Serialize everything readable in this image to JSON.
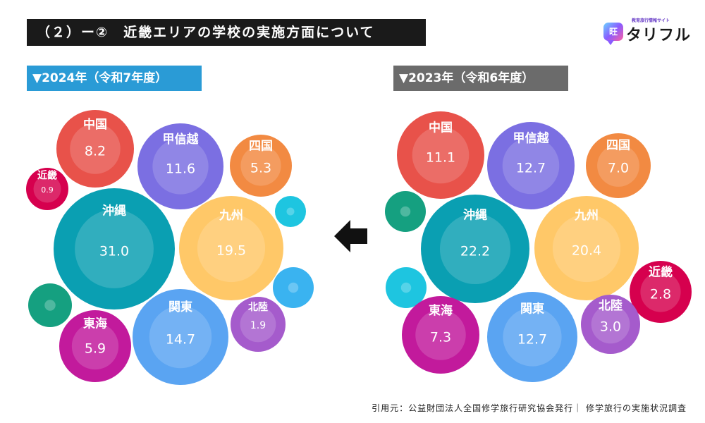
{
  "header": {
    "title": "（２）ー②　近畿エリアの学校の実施方面について",
    "arrow_icon": "left-arrow-icon"
  },
  "logo": {
    "tagline": "教育旅行情報サイト",
    "icon_text": "旺",
    "name": "タリフル"
  },
  "colors": {
    "近畿": "#d6004e",
    "中国": "#e8524a",
    "甲信越": "#7b6fe2",
    "四国": "#f28a42",
    "沖縄": "#0a9fb2",
    "九州": "#ffc868",
    "東海": "#c21a9c",
    "関東": "#5aa4f2",
    "北陸": "#a55bcc",
    "empty_cyan": "#1ec5e0",
    "empty_lightblue": "#3ab3f0",
    "empty_green": "#15a080",
    "year_left_bg": "#2a9bd6",
    "year_right_bg": "#6b6b6b"
  },
  "chart_data": [
    {
      "type": "bubble",
      "title": "▼2024年（令和7年度）",
      "unit": "%",
      "series": [
        {
          "name": "近畿",
          "value": "0.9"
        },
        {
          "name": "中国",
          "value": "8.2"
        },
        {
          "name": "甲信越",
          "value": "11.6"
        },
        {
          "name": "四国",
          "value": "5.3"
        },
        {
          "name": "沖縄",
          "value": "31.0"
        },
        {
          "name": "九州",
          "value": "19.5"
        },
        {
          "name": "東海",
          "value": "5.9"
        },
        {
          "name": "関東",
          "value": "14.7"
        },
        {
          "name": "北陸",
          "value": "1.9"
        }
      ]
    },
    {
      "type": "bubble",
      "title": "▼2023年（令和6年度）",
      "unit": "%",
      "series": [
        {
          "name": "中国",
          "value": "11.1"
        },
        {
          "name": "甲信越",
          "value": "12.7"
        },
        {
          "name": "四国",
          "value": "7.0"
        },
        {
          "name": "沖縄",
          "value": "22.2"
        },
        {
          "name": "九州",
          "value": "20.4"
        },
        {
          "name": "近畿",
          "value": "2.8"
        },
        {
          "name": "東海",
          "value": "7.3"
        },
        {
          "name": "関東",
          "value": "12.7"
        },
        {
          "name": "北陸",
          "value": "3.0"
        }
      ]
    }
  ],
  "footer": {
    "source": "引用元：公益財団法人全国修学旅行研究協会発行｜ 修学旅行の実施状況調査"
  }
}
